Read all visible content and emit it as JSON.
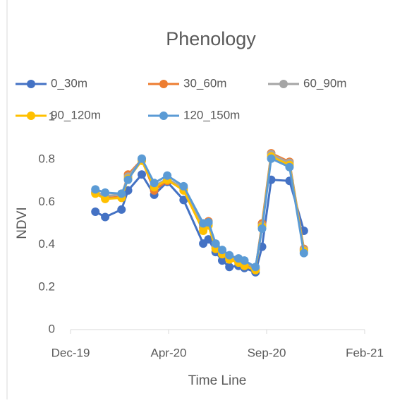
{
  "chart_data": {
    "type": "line",
    "title": "Phenology",
    "x_label": "Time Line",
    "y_label": "NDVI",
    "x": [
      43838,
      43853,
      43878,
      43888,
      43909,
      43928,
      43948,
      43973,
      44003,
      44011,
      44022,
      44032,
      44043,
      44057,
      44066,
      44083,
      44093,
      44107,
      44135,
      44157
    ],
    "series": [
      {
        "name": "0_30m",
        "color": "#4472c4",
        "values": [
          0.555,
          0.53,
          0.565,
          0.655,
          0.73,
          0.635,
          0.695,
          0.61,
          0.405,
          0.425,
          0.365,
          0.325,
          0.295,
          0.3,
          0.29,
          0.27,
          0.39,
          0.705,
          0.7,
          0.465
        ]
      },
      {
        "name": "30_60m",
        "color": "#ed7d31",
        "values": [
          0.645,
          0.62,
          0.625,
          0.73,
          0.8,
          0.655,
          0.7,
          0.665,
          0.48,
          0.51,
          0.385,
          0.36,
          0.34,
          0.32,
          0.31,
          0.285,
          0.5,
          0.83,
          0.79,
          0.38
        ]
      },
      {
        "name": "60_90m",
        "color": "#a5a5a5",
        "values": [
          0.65,
          0.63,
          0.635,
          0.72,
          0.8,
          0.675,
          0.71,
          0.665,
          0.49,
          0.5,
          0.395,
          0.37,
          0.345,
          0.325,
          0.315,
          0.29,
          0.49,
          0.825,
          0.785,
          0.375
        ]
      },
      {
        "name": "90_120m",
        "color": "#ffc000",
        "values": [
          0.64,
          0.615,
          0.62,
          0.71,
          0.795,
          0.67,
          0.705,
          0.655,
          0.465,
          0.49,
          0.38,
          0.355,
          0.33,
          0.315,
          0.3,
          0.28,
          0.485,
          0.815,
          0.775,
          0.37
        ]
      },
      {
        "name": "120_150m",
        "color": "#5b9bd5",
        "values": [
          0.66,
          0.645,
          0.64,
          0.705,
          0.805,
          0.69,
          0.725,
          0.675,
          0.5,
          0.505,
          0.405,
          0.375,
          0.35,
          0.335,
          0.325,
          0.295,
          0.475,
          0.805,
          0.765,
          0.36
        ]
      }
    ],
    "xlim": [
      43800,
      44250
    ],
    "xticks": [
      {
        "value": 43800,
        "label": "Dec-19"
      },
      {
        "value": 43950,
        "label": "Apr-20"
      },
      {
        "value": 44100,
        "label": "Sep-20"
      },
      {
        "value": 44250,
        "label": "Feb-21"
      }
    ],
    "ylim": [
      0,
      1
    ],
    "yticks": [
      0,
      0.2,
      0.4,
      0.6,
      0.8,
      1
    ]
  }
}
